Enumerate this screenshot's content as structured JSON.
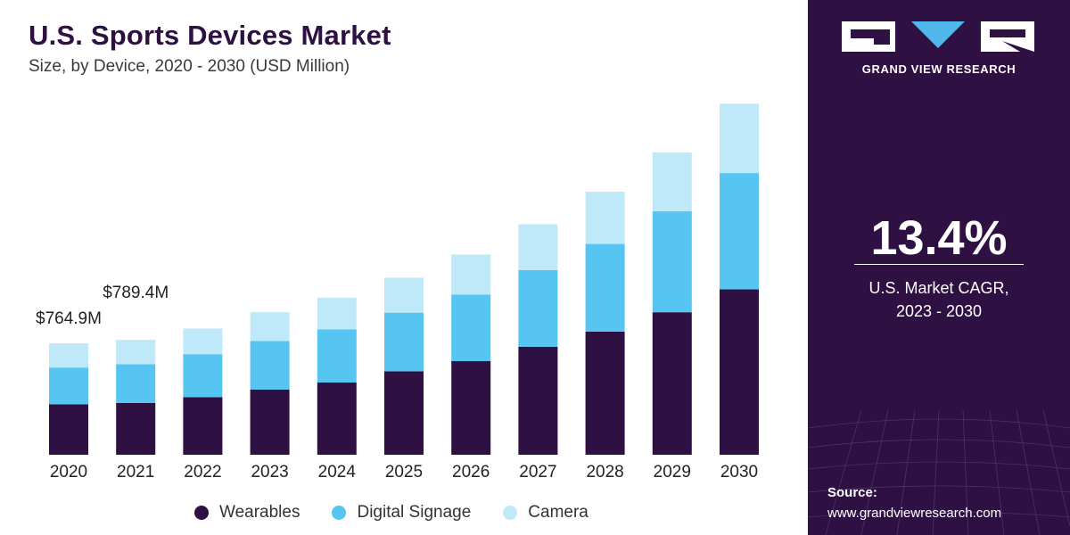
{
  "header": {
    "title": "U.S. Sports Devices Market",
    "subtitle": "Size, by Device, 2020 - 2030 (USD Million)"
  },
  "colors": {
    "wearables": "#2e1042",
    "digital_signage": "#57c5f2",
    "camera": "#bfe8f9",
    "sidebar_bg": "#2e1042"
  },
  "chart_data": {
    "type": "bar",
    "stacked": true,
    "categories": [
      "2020",
      "2021",
      "2022",
      "2023",
      "2024",
      "2025",
      "2026",
      "2027",
      "2028",
      "2029",
      "2030"
    ],
    "series": [
      {
        "name": "Wearables",
        "values": [
          346,
          356,
          395,
          448,
          496,
          573,
          643,
          742,
          846,
          979,
          1136
        ]
      },
      {
        "name": "Digital Signage",
        "values": [
          253,
          266,
          296,
          333,
          365,
          403,
          457,
          527,
          602,
          693,
          799
        ]
      },
      {
        "name": "Camera",
        "values": [
          166,
          167,
          176,
          198,
          218,
          240,
          275,
          314,
          359,
          405,
          476
        ]
      }
    ],
    "totals_labels": [
      {
        "category": "2020",
        "text": "$764.9M"
      },
      {
        "category": "2021",
        "text": "$789.4M"
      }
    ],
    "ylim": [
      0,
      2450
    ],
    "grid": false,
    "legend_position": "bottom"
  },
  "legend": [
    {
      "label": "Wearables"
    },
    {
      "label": "Digital Signage"
    },
    {
      "label": "Camera"
    }
  ],
  "sidebar": {
    "brand": "GRAND VIEW RESEARCH",
    "cagr_value": "13.4%",
    "cagr_label_line1": "U.S. Market CAGR,",
    "cagr_label_line2": "2023 - 2030",
    "source_label": "Source:",
    "source_url": "www.grandviewresearch.com"
  }
}
